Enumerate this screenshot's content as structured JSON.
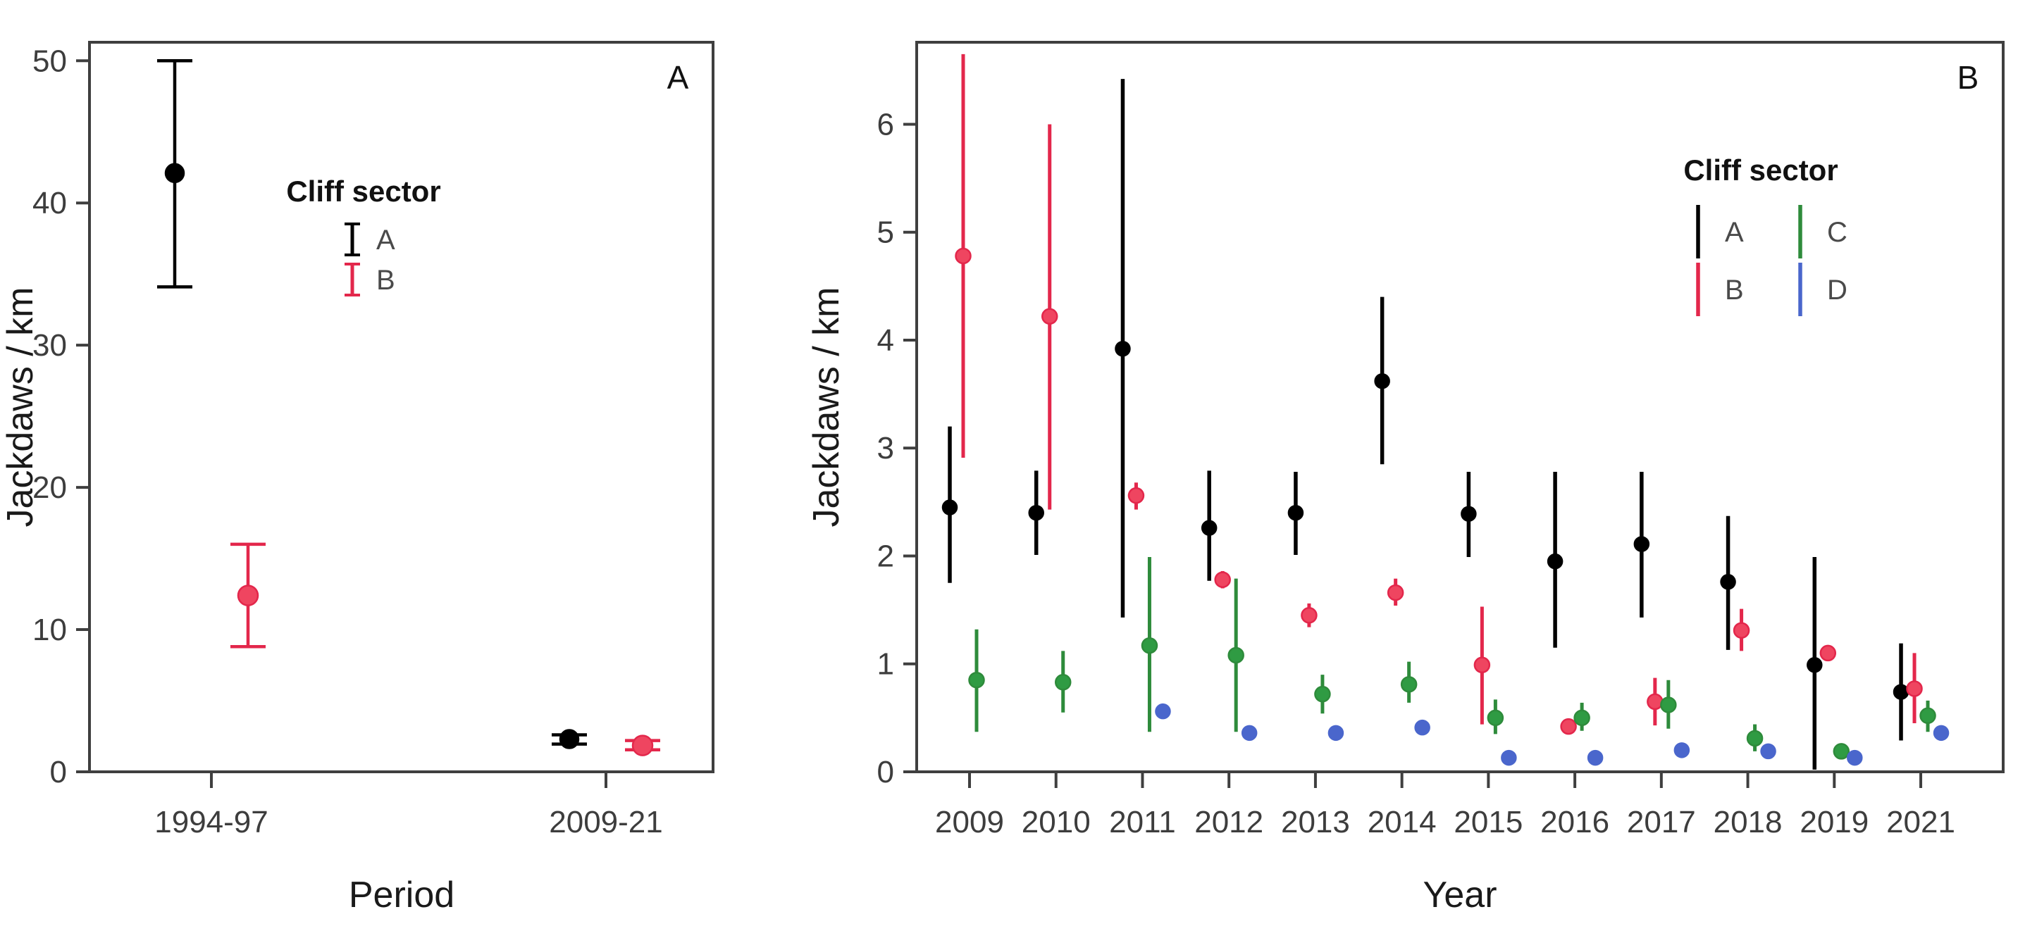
{
  "figure": {
    "background": "#ffffff",
    "text_color": "#3d3d3d",
    "frame_color": "#3f3f3f"
  },
  "chart_data": [
    {
      "type": "scatter",
      "panel_label": "A",
      "xlabel": "Period",
      "ylabel": "Jackdaws / km",
      "categories": [
        "1994-97",
        "2009-21"
      ],
      "yticks": [
        0,
        10,
        20,
        30,
        40,
        50
      ],
      "ylim": [
        0,
        51.3
      ],
      "grid": false,
      "error_caps": true,
      "legend": {
        "title": "Cliff sector",
        "position": "inside-right-upper",
        "entries": [
          {
            "label": "A",
            "color": "#000000"
          },
          {
            "label": "B",
            "color": "#E3274B"
          }
        ]
      },
      "series": [
        {
          "name": "A",
          "line": "#000000",
          "fill": "#000000",
          "points": [
            {
              "x": "1994-97",
              "y": 42.1,
              "lo": 34.1,
              "hi": 50.0
            },
            {
              "x": "2009-21",
              "y": 2.3,
              "lo": 1.95,
              "hi": 2.6
            }
          ]
        },
        {
          "name": "B",
          "line": "#E3274B",
          "fill": "#EF4560",
          "points": [
            {
              "x": "1994-97",
              "y": 12.4,
              "lo": 8.8,
              "hi": 16.0
            },
            {
              "x": "2009-21",
              "y": 1.85,
              "lo": 1.55,
              "hi": 2.2
            }
          ]
        }
      ]
    },
    {
      "type": "scatter",
      "panel_label": "B",
      "xlabel": "Year",
      "ylabel": "Jackdaws / km",
      "categories": [
        "2009",
        "2010",
        "2011",
        "2012",
        "2013",
        "2014",
        "2015",
        "2016",
        "2017",
        "2018",
        "2019",
        "2021"
      ],
      "yticks": [
        0,
        1,
        2,
        3,
        4,
        5,
        6
      ],
      "ylim": [
        0,
        6.76
      ],
      "grid": false,
      "error_caps": false,
      "legend": {
        "title": "Cliff sector",
        "position": "inside-right-upper",
        "entries": [
          {
            "label": "A",
            "color": "#000000"
          },
          {
            "label": "B",
            "color": "#E3274B"
          },
          {
            "label": "C",
            "color": "#2E8B3B"
          },
          {
            "label": "D",
            "color": "#4A66CC"
          }
        ]
      },
      "series": [
        {
          "name": "A",
          "line": "#000000",
          "fill": "#000000",
          "points": [
            {
              "x": "2009",
              "y": 2.45,
              "lo": 1.75,
              "hi": 3.2
            },
            {
              "x": "2010",
              "y": 2.4,
              "lo": 2.01,
              "hi": 2.79
            },
            {
              "x": "2011",
              "y": 3.92,
              "lo": 1.43,
              "hi": 6.42
            },
            {
              "x": "2012",
              "y": 2.26,
              "lo": 1.77,
              "hi": 2.79
            },
            {
              "x": "2013",
              "y": 2.4,
              "lo": 2.01,
              "hi": 2.78
            },
            {
              "x": "2014",
              "y": 3.62,
              "lo": 2.85,
              "hi": 4.4
            },
            {
              "x": "2015",
              "y": 2.39,
              "lo": 1.99,
              "hi": 2.78
            },
            {
              "x": "2016",
              "y": 1.95,
              "lo": 1.15,
              "hi": 2.78
            },
            {
              "x": "2017",
              "y": 2.11,
              "lo": 1.43,
              "hi": 2.78
            },
            {
              "x": "2018",
              "y": 1.76,
              "lo": 1.13,
              "hi": 2.37
            },
            {
              "x": "2019",
              "y": 0.99,
              "lo": 0.02,
              "hi": 1.99
            },
            {
              "x": "2021",
              "y": 0.74,
              "lo": 0.29,
              "hi": 1.19
            }
          ]
        },
        {
          "name": "B",
          "line": "#E3274B",
          "fill": "#EF4560",
          "points": [
            {
              "x": "2009",
              "y": 4.78,
              "lo": 2.91,
              "hi": 6.65
            },
            {
              "x": "2010",
              "y": 4.22,
              "lo": 2.43,
              "hi": 6.0
            },
            {
              "x": "2011",
              "y": 2.56,
              "lo": 2.43,
              "hi": 2.68
            },
            {
              "x": "2012",
              "y": 1.78,
              "lo": 1.7,
              "hi": 1.86
            },
            {
              "x": "2013",
              "y": 1.45,
              "lo": 1.34,
              "hi": 1.56
            },
            {
              "x": "2014",
              "y": 1.66,
              "lo": 1.54,
              "hi": 1.79
            },
            {
              "x": "2015",
              "y": 0.99,
              "lo": 0.44,
              "hi": 1.53
            },
            {
              "x": "2016",
              "y": 0.42,
              "lo": 0.36,
              "hi": 0.49
            },
            {
              "x": "2017",
              "y": 0.65,
              "lo": 0.43,
              "hi": 0.87
            },
            {
              "x": "2018",
              "y": 1.31,
              "lo": 1.12,
              "hi": 1.51
            },
            {
              "x": "2019",
              "y": 1.1,
              "lo": null,
              "hi": null
            },
            {
              "x": "2021",
              "y": 0.77,
              "lo": 0.45,
              "hi": 1.1
            }
          ]
        },
        {
          "name": "C",
          "line": "#2E8B3B",
          "fill": "#2F9B43",
          "points": [
            {
              "x": "2009",
              "y": 0.85,
              "lo": 0.37,
              "hi": 1.32
            },
            {
              "x": "2010",
              "y": 0.83,
              "lo": 0.55,
              "hi": 1.12
            },
            {
              "x": "2011",
              "y": 1.17,
              "lo": 0.37,
              "hi": 1.99
            },
            {
              "x": "2012",
              "y": 1.08,
              "lo": 0.37,
              "hi": 1.79
            },
            {
              "x": "2013",
              "y": 0.72,
              "lo": 0.54,
              "hi": 0.9
            },
            {
              "x": "2014",
              "y": 0.81,
              "lo": 0.64,
              "hi": 1.02
            },
            {
              "x": "2015",
              "y": 0.5,
              "lo": 0.35,
              "hi": 0.67
            },
            {
              "x": "2016",
              "y": 0.5,
              "lo": 0.38,
              "hi": 0.64
            },
            {
              "x": "2017",
              "y": 0.62,
              "lo": 0.4,
              "hi": 0.85
            },
            {
              "x": "2018",
              "y": 0.31,
              "lo": 0.19,
              "hi": 0.44
            },
            {
              "x": "2019",
              "y": 0.19,
              "lo": null,
              "hi": null
            },
            {
              "x": "2021",
              "y": 0.52,
              "lo": 0.37,
              "hi": 0.66
            }
          ]
        },
        {
          "name": "D",
          "line": "#4A66CC",
          "fill": "#4A66CC",
          "points": [
            {
              "x": "2011",
              "y": 0.56,
              "lo": null,
              "hi": null
            },
            {
              "x": "2012",
              "y": 0.36,
              "lo": null,
              "hi": null
            },
            {
              "x": "2013",
              "y": 0.36,
              "lo": null,
              "hi": null
            },
            {
              "x": "2014",
              "y": 0.41,
              "lo": null,
              "hi": null
            },
            {
              "x": "2015",
              "y": 0.13,
              "lo": null,
              "hi": null
            },
            {
              "x": "2016",
              "y": 0.13,
              "lo": null,
              "hi": null
            },
            {
              "x": "2017",
              "y": 0.2,
              "lo": null,
              "hi": null
            },
            {
              "x": "2018",
              "y": 0.19,
              "lo": null,
              "hi": null
            },
            {
              "x": "2019",
              "y": 0.13,
              "lo": null,
              "hi": null
            },
            {
              "x": "2021",
              "y": 0.36,
              "lo": null,
              "hi": null
            }
          ]
        }
      ]
    }
  ]
}
